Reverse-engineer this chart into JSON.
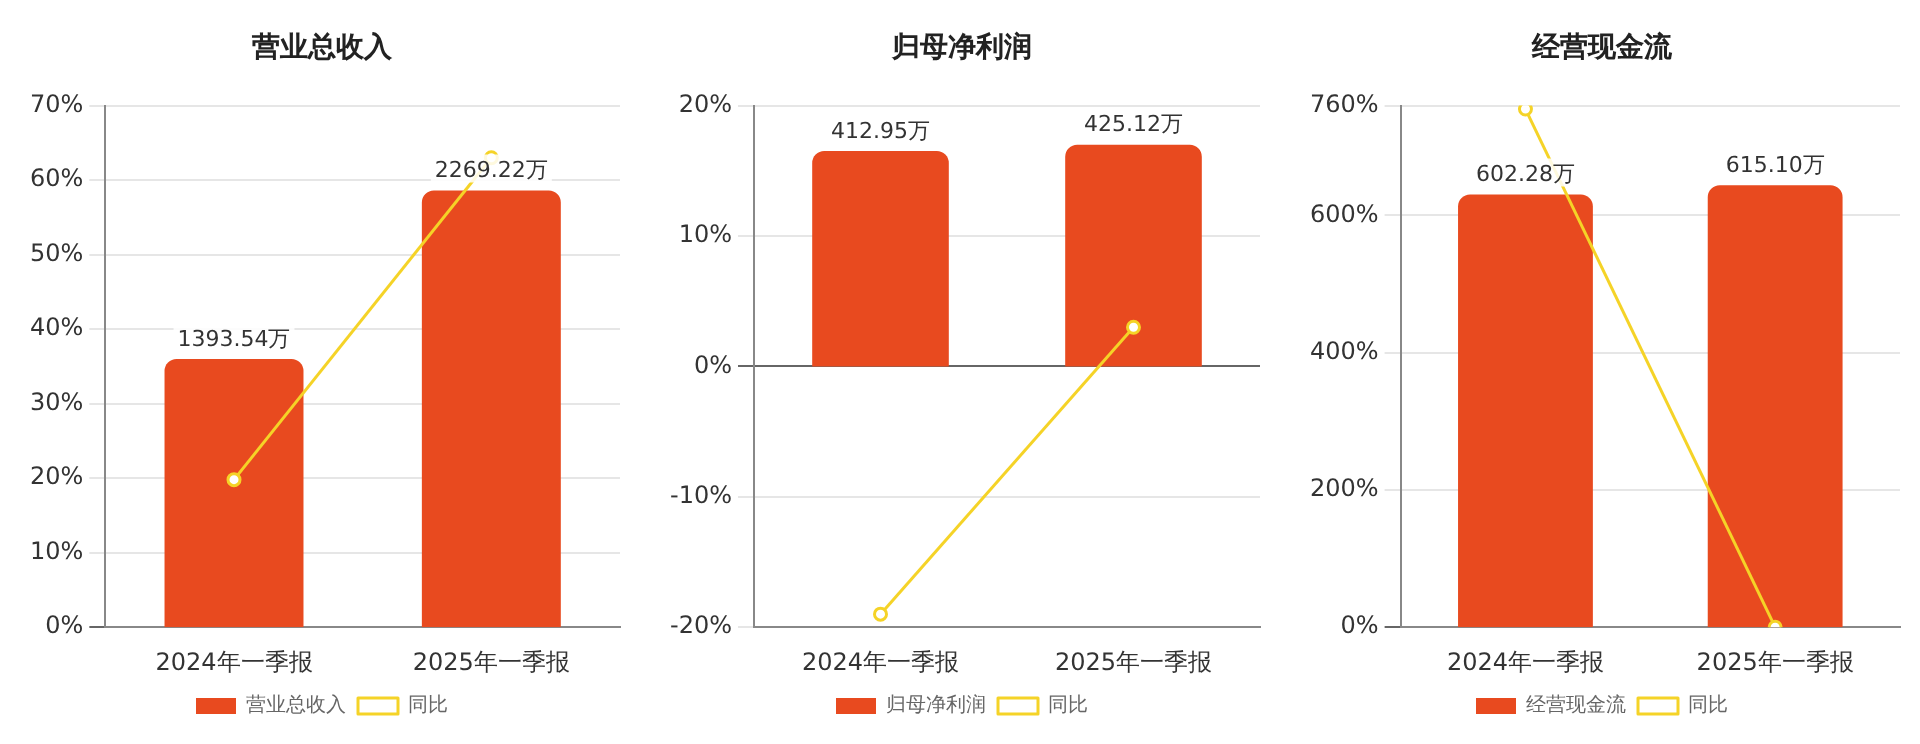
{
  "chart_data": [
    {
      "type": "bar",
      "title": "营业总收入",
      "categories": [
        "2024年一季报",
        "2025年一季报"
      ],
      "series": [
        {
          "name": "营业总收入",
          "axis": "y2",
          "color": "#e84a1f",
          "values": [
            1393.54,
            2269.22
          ],
          "value_labels": [
            "1393.54万",
            "2269.22万"
          ]
        },
        {
          "name": "同比",
          "type": "line",
          "color": "#f5d327",
          "values": [
            19.8,
            63
          ]
        }
      ],
      "ylim": [
        0,
        70
      ],
      "yticks": [
        {
          "value": 0,
          "label": "0%"
        },
        {
          "value": 10,
          "label": "10%"
        },
        {
          "value": 20,
          "label": "20%"
        },
        {
          "value": 30,
          "label": "30%"
        },
        {
          "value": 40,
          "label": "40%"
        },
        {
          "value": 50,
          "label": "50%"
        },
        {
          "value": 60,
          "label": "60%"
        },
        {
          "value": 70,
          "label": "70%"
        }
      ],
      "y2lim": [
        0,
        2710
      ],
      "tick_labels": "x",
      "grid": "y",
      "legend": "bottom",
      "marker": "circle"
    },
    {
      "type": "bar",
      "title": "归母净利润",
      "categories": [
        "2024年一季报",
        "2025年一季报"
      ],
      "series": [
        {
          "name": "归母净利润",
          "axis": "y2",
          "color": "#e84a1f",
          "values": [
            412.95,
            425.12
          ],
          "value_labels": [
            "412.95万",
            "425.12万"
          ]
        },
        {
          "name": "同比",
          "type": "line",
          "color": "#f5d327",
          "values": [
            -19,
            3
          ]
        }
      ],
      "ylim": [
        -20,
        20
      ],
      "yticks": [
        {
          "value": -20,
          "label": "-20%"
        },
        {
          "value": -10,
          "label": "-10%"
        },
        {
          "value": 0,
          "label": "0%"
        },
        {
          "value": 10,
          "label": "10%"
        },
        {
          "value": 20,
          "label": "20%"
        }
      ],
      "y2lim": [
        -500,
        500
      ],
      "tick_labels": "x",
      "grid": "y",
      "legend": "bottom",
      "marker": "circle"
    },
    {
      "type": "bar",
      "title": "经营现金流",
      "categories": [
        "2024年一季报",
        "2025年一季报"
      ],
      "series": [
        {
          "name": "经营现金流",
          "axis": "y2",
          "color": "#e84a1f",
          "values": [
            602.28,
            615.1
          ],
          "value_labels": [
            "602.28万",
            "615.10万"
          ]
        },
        {
          "name": "同比",
          "type": "line",
          "color": "#f5d327",
          "values": [
            755,
            0
          ]
        }
      ],
      "ylim": [
        0,
        760
      ],
      "yticks": [
        {
          "value": 0,
          "label": "0%"
        },
        {
          "value": 200,
          "label": "200%"
        },
        {
          "value": 400,
          "label": "400%"
        },
        {
          "value": 600,
          "label": "600%"
        },
        {
          "value": 760,
          "label": "760%"
        }
      ],
      "y2lim": [
        0,
        726
      ],
      "tick_labels": "x",
      "grid": "y",
      "legend": "bottom",
      "marker": "circle"
    }
  ]
}
